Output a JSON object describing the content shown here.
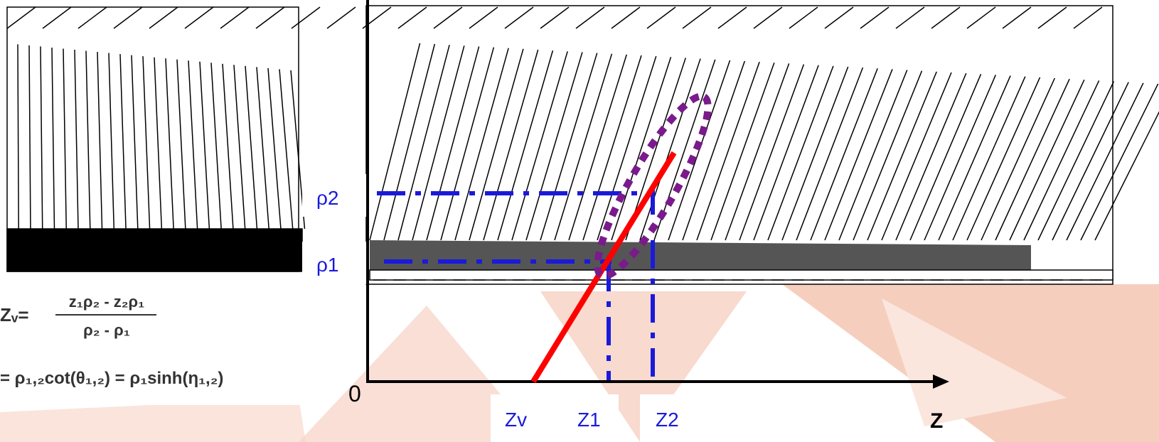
{
  "labels": {
    "rho2": "ρ2",
    "rho1": "ρ1",
    "origin": "0",
    "zv": "Zv",
    "z1": "Z1",
    "z2": "Z2",
    "z_axis": "Z"
  },
  "formula": {
    "lhs": "Zᵥ=",
    "numerator": "z₁ρ₂ - z₂ρ₁",
    "denominator": "ρ₂ - ρ₁",
    "relation": "= ρ₁,₂cot(θ₁,₂) = ρ₁sinh(η₁,₂)"
  }
}
